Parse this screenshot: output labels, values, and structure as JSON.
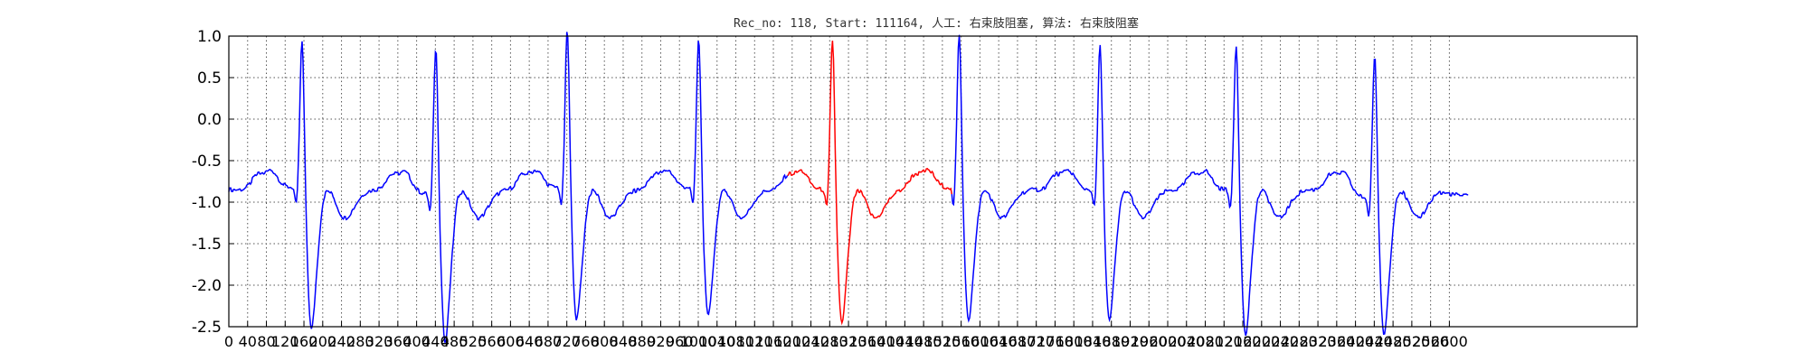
{
  "chart_data": {
    "type": "line",
    "title": "Rec_no: 118, Start: 111164, 人工: 右束肢阻塞, 算法: 右束肢阻塞",
    "xlabel": "",
    "ylabel": "",
    "xlim": [
      0,
      3000
    ],
    "ylim": [
      -2.5,
      1.0
    ],
    "grid": true,
    "y_ticks": [
      1.0,
      0.5,
      0.0,
      -0.5,
      -1.0,
      -1.5,
      -2.0,
      -2.5
    ],
    "y_tick_labels": [
      "1.0",
      "0.5",
      "0.0",
      "-0.5",
      "-1.0",
      "-1.5",
      "-2.0",
      "-2.5"
    ],
    "x_ticks": [
      0,
      40,
      80,
      120,
      160,
      200,
      240,
      280,
      320,
      360,
      400,
      440,
      480,
      520,
      560,
      600,
      640,
      680,
      720,
      760,
      800,
      840,
      880,
      920,
      960,
      1000,
      1040,
      1080,
      1120,
      1160,
      1200,
      1240,
      1280,
      1320,
      1360,
      1400,
      1440,
      1480,
      1520,
      1560,
      1600,
      1640,
      1680,
      1720,
      1760,
      1800,
      1840,
      1880,
      1920,
      1960,
      2000,
      2040,
      2080,
      2120,
      2160,
      2200,
      2240,
      2280,
      2320,
      2360,
      2400,
      2440,
      2480,
      2520,
      2560,
      2600
    ],
    "x_tick_labels": [
      "0",
      "40",
      "80",
      "120",
      "160",
      "200",
      "240",
      "280",
      "320",
      "360",
      "400",
      "440",
      "480",
      "520",
      "560",
      "600",
      "640",
      "680",
      "720",
      "760",
      "800",
      "840",
      "880",
      "920",
      "960",
      "1000",
      "1040",
      "1080",
      "1120",
      "1160",
      "1200",
      "1240",
      "1280",
      "1320",
      "1360",
      "1400",
      "1440",
      "1480",
      "1520",
      "1560",
      "1600",
      "1640",
      "1680",
      "1720",
      "1760",
      "1800",
      "1840",
      "1880",
      "1920",
      "1960",
      "2000",
      "2040",
      "2080",
      "2120",
      "2160",
      "2200",
      "2240",
      "2280",
      "2320",
      "2360",
      "2400",
      "2440",
      "2480",
      "2520",
      "2560",
      "2600"
    ],
    "series": [
      {
        "color": "#0000ff",
        "segments": [
          [
            0,
            1190
          ],
          [
            1540,
            2640
          ]
        ]
      },
      {
        "color": "#ff0000",
        "segments": [
          [
            1190,
            1540
          ]
        ]
      }
    ],
    "beats": [
      {
        "r": 160,
        "r_value": 0.65,
        "s_value": -2.25,
        "lead_value": -0.82
      },
      {
        "r": 445,
        "r_value": 0.65,
        "s_value": -2.35,
        "lead_value": -0.9
      },
      {
        "r": 725,
        "r_value": 0.78,
        "s_value": -2.15,
        "lead_value": -0.82
      },
      {
        "r": 1005,
        "r_value": 0.68,
        "s_value": -2.12,
        "lead_value": -0.82
      },
      {
        "r": 1290,
        "r_value": 0.68,
        "s_value": -2.18,
        "lead_value": -0.85
      },
      {
        "r": 1560,
        "r_value": 0.72,
        "s_value": -2.15,
        "lead_value": -0.82
      },
      {
        "r": 1860,
        "r_value": 0.62,
        "s_value": -2.15,
        "lead_value": -0.85
      },
      {
        "r": 2150,
        "r_value": 0.62,
        "s_value": -2.28,
        "lead_value": -0.85
      },
      {
        "r": 2445,
        "r_value": 0.6,
        "s_value": -2.25,
        "lead_value": -0.95
      }
    ],
    "baseline_value": -0.85,
    "end_x": 2640,
    "end_value": -1.0
  },
  "colors": {
    "axis": "#000000",
    "grid": "#555555"
  }
}
